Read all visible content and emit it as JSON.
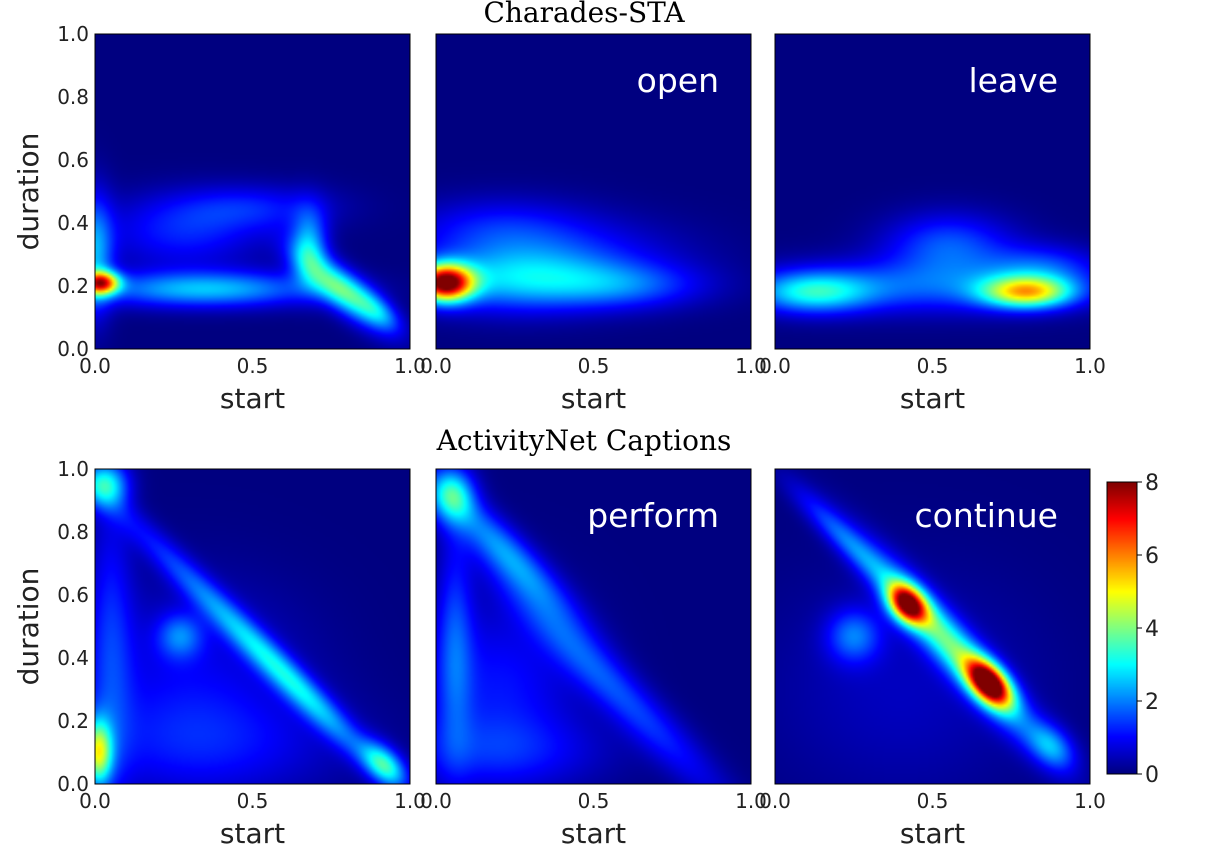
{
  "figure": {
    "row_titles": [
      "Charades-STA",
      "ActivityNet Captions"
    ]
  },
  "chart_data": [
    {
      "type": "heatmap",
      "row_title": "Charades-STA",
      "annotation": "",
      "xlabel": "start",
      "ylabel": "duration",
      "xlim": [
        0,
        1
      ],
      "ylim": [
        0,
        1
      ],
      "xticks": [
        0.0,
        0.5,
        1.0
      ],
      "yticks": [
        0.0,
        0.2,
        0.4,
        0.6,
        0.8,
        1.0
      ],
      "colormap": "jet",
      "clim": [
        0,
        8
      ],
      "density_components": [
        {
          "x": 0.02,
          "y": 0.21,
          "sx": 0.04,
          "sy": 0.025,
          "v": 5.5,
          "theta": 0
        },
        {
          "x": 0.0,
          "y": 0.3,
          "sx": 0.04,
          "sy": 0.13,
          "v": 2.2,
          "theta": 0
        },
        {
          "x": 0.35,
          "y": 0.19,
          "sx": 0.25,
          "sy": 0.04,
          "v": 2.5,
          "theta": 0
        },
        {
          "x": 0.28,
          "y": 0.37,
          "sx": 0.18,
          "sy": 0.08,
          "v": 1.2,
          "theta": 0
        },
        {
          "x": 0.68,
          "y": 0.33,
          "sx": 0.04,
          "sy": 0.08,
          "v": 2.2,
          "theta": 0
        },
        {
          "x": 0.78,
          "y": 0.19,
          "sx": 0.12,
          "sy": 0.04,
          "v": 3.3,
          "theta": -40
        },
        {
          "x": 0.5,
          "y": 0.45,
          "sx": 0.18,
          "sy": 0.05,
          "v": 1.0,
          "theta": 0
        },
        {
          "x": 0.9,
          "y": 0.12,
          "sx": 0.06,
          "sy": 0.03,
          "v": 1.5,
          "theta": -40
        }
      ]
    },
    {
      "type": "heatmap",
      "row_title": "Charades-STA",
      "annotation": "open",
      "xlabel": "start",
      "ylabel": "",
      "xlim": [
        0,
        1
      ],
      "ylim": [
        0,
        1
      ],
      "xticks": [
        0.0,
        0.5,
        1.0
      ],
      "yticks": [],
      "colormap": "jet",
      "clim": [
        0,
        8
      ],
      "density_components": [
        {
          "x": 0.03,
          "y": 0.21,
          "sx": 0.06,
          "sy": 0.04,
          "v": 7.5,
          "theta": 0
        },
        {
          "x": 0.25,
          "y": 0.22,
          "sx": 0.22,
          "sy": 0.07,
          "v": 2.3,
          "theta": 0
        },
        {
          "x": 0.6,
          "y": 0.2,
          "sx": 0.18,
          "sy": 0.05,
          "v": 1.4,
          "theta": 0
        },
        {
          "x": 0.2,
          "y": 0.38,
          "sx": 0.2,
          "sy": 0.07,
          "v": 1.1,
          "theta": 0
        },
        {
          "x": 0.45,
          "y": 0.3,
          "sx": 0.25,
          "sy": 0.08,
          "v": 0.8,
          "theta": 0
        }
      ]
    },
    {
      "type": "heatmap",
      "row_title": "Charades-STA",
      "annotation": "leave",
      "xlabel": "start",
      "ylabel": "",
      "xlim": [
        0,
        1
      ],
      "ylim": [
        0,
        1
      ],
      "xticks": [
        0.0,
        0.5,
        1.0
      ],
      "yticks": [],
      "colormap": "jet",
      "clim": [
        0,
        8
      ],
      "density_components": [
        {
          "x": 0.8,
          "y": 0.18,
          "sx": 0.1,
          "sy": 0.035,
          "v": 4.5,
          "theta": 0
        },
        {
          "x": 0.12,
          "y": 0.18,
          "sx": 0.13,
          "sy": 0.045,
          "v": 2.6,
          "theta": 0
        },
        {
          "x": 0.5,
          "y": 0.2,
          "sx": 0.35,
          "sy": 0.06,
          "v": 1.6,
          "theta": 0
        },
        {
          "x": 0.55,
          "y": 0.33,
          "sx": 0.14,
          "sy": 0.07,
          "v": 1.6,
          "theta": 0
        },
        {
          "x": 0.85,
          "y": 0.26,
          "sx": 0.12,
          "sy": 0.05,
          "v": 1.2,
          "theta": 0
        }
      ]
    },
    {
      "type": "heatmap",
      "row_title": "ActivityNet Captions",
      "annotation": "",
      "xlabel": "start",
      "ylabel": "duration",
      "xlim": [
        0,
        1
      ],
      "ylim": [
        0,
        1
      ],
      "xticks": [
        0.0,
        0.5,
        1.0
      ],
      "yticks": [
        0.0,
        0.2,
        0.4,
        0.6,
        0.8,
        1.0
      ],
      "colormap": "jet",
      "clim": [
        0,
        8
      ],
      "density_components": [
        {
          "x": 0.01,
          "y": 0.1,
          "sx": 0.03,
          "sy": 0.07,
          "v": 4.0,
          "theta": 0
        },
        {
          "x": 0.03,
          "y": 0.95,
          "sx": 0.05,
          "sy": 0.05,
          "v": 2.8,
          "theta": 0
        },
        {
          "x": 0.92,
          "y": 0.06,
          "sx": 0.06,
          "sy": 0.035,
          "v": 3.0,
          "theta": -45
        },
        {
          "x": 0.65,
          "y": 0.3,
          "sx": 0.22,
          "sy": 0.035,
          "v": 2.1,
          "theta": -45
        },
        {
          "x": 0.35,
          "y": 0.6,
          "sx": 0.3,
          "sy": 0.035,
          "v": 1.4,
          "theta": -45
        },
        {
          "x": 0.27,
          "y": 0.47,
          "sx": 0.05,
          "sy": 0.05,
          "v": 1.5,
          "theta": 0
        },
        {
          "x": 0.05,
          "y": 0.45,
          "sx": 0.05,
          "sy": 0.35,
          "v": 1.1,
          "theta": 0
        },
        {
          "x": 0.35,
          "y": 0.12,
          "sx": 0.3,
          "sy": 0.12,
          "v": 0.9,
          "theta": 0
        },
        {
          "x": 0.3,
          "y": 0.35,
          "sx": 0.25,
          "sy": 0.2,
          "v": 0.8,
          "theta": 0
        }
      ]
    },
    {
      "type": "heatmap",
      "row_title": "ActivityNet Captions",
      "annotation": "perform",
      "xlabel": "start",
      "ylabel": "",
      "xlim": [
        0,
        1
      ],
      "ylim": [
        0,
        1
      ],
      "xticks": [
        0.0,
        0.5,
        1.0
      ],
      "yticks": [],
      "colormap": "jet",
      "clim": [
        0,
        8
      ],
      "density_components": [
        {
          "x": 0.05,
          "y": 0.92,
          "sx": 0.05,
          "sy": 0.06,
          "v": 2.6,
          "theta": 0
        },
        {
          "x": 0.22,
          "y": 0.74,
          "sx": 0.2,
          "sy": 0.045,
          "v": 2.0,
          "theta": -45
        },
        {
          "x": 0.55,
          "y": 0.32,
          "sx": 0.35,
          "sy": 0.05,
          "v": 1.5,
          "theta": -45
        },
        {
          "x": 0.06,
          "y": 0.45,
          "sx": 0.04,
          "sy": 0.25,
          "v": 1.3,
          "theta": 0
        },
        {
          "x": 0.2,
          "y": 0.3,
          "sx": 0.18,
          "sy": 0.2,
          "v": 1.1,
          "theta": 0
        },
        {
          "x": 0.2,
          "y": 0.1,
          "sx": 0.25,
          "sy": 0.08,
          "v": 0.8,
          "theta": 0
        }
      ]
    },
    {
      "type": "heatmap",
      "row_title": "ActivityNet Captions",
      "annotation": "continue",
      "xlabel": "start",
      "ylabel": "",
      "xlim": [
        0,
        1
      ],
      "ylim": [
        0,
        1
      ],
      "xticks": [
        0.0,
        0.5,
        1.0
      ],
      "yticks": [],
      "colormap": "jet",
      "clim": [
        0,
        8
      ],
      "density_components": [
        {
          "x": 0.42,
          "y": 0.57,
          "sx": 0.05,
          "sy": 0.035,
          "v": 6.5,
          "theta": -48
        },
        {
          "x": 0.68,
          "y": 0.32,
          "sx": 0.06,
          "sy": 0.035,
          "v": 7.5,
          "theta": -48
        },
        {
          "x": 0.56,
          "y": 0.44,
          "sx": 0.26,
          "sy": 0.045,
          "v": 3.5,
          "theta": -48
        },
        {
          "x": 0.22,
          "y": 0.78,
          "sx": 0.16,
          "sy": 0.03,
          "v": 1.4,
          "theta": -45
        },
        {
          "x": 0.25,
          "y": 0.47,
          "sx": 0.06,
          "sy": 0.06,
          "v": 1.7,
          "theta": 0
        },
        {
          "x": 0.88,
          "y": 0.12,
          "sx": 0.06,
          "sy": 0.04,
          "v": 1.8,
          "theta": -45
        },
        {
          "x": 0.4,
          "y": 0.3,
          "sx": 0.3,
          "sy": 0.25,
          "v": 0.5,
          "theta": 0
        }
      ]
    }
  ],
  "colorbar": {
    "colormap": "jet",
    "range": [
      0,
      8
    ],
    "ticks": [
      "0",
      "2",
      "4",
      "6",
      "8"
    ]
  }
}
